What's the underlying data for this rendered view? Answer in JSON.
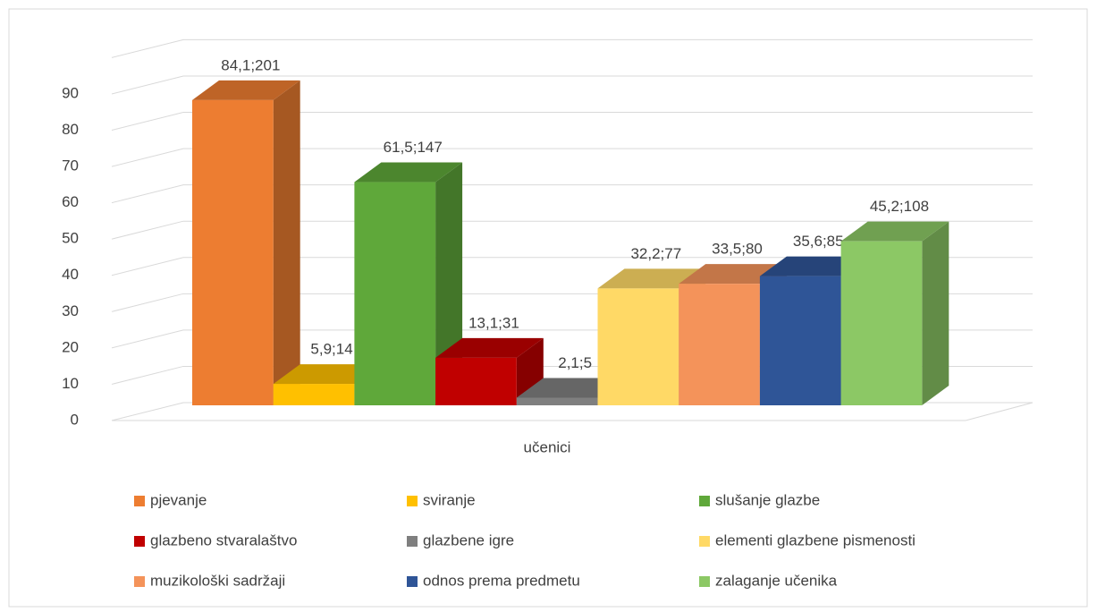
{
  "chart_data": {
    "type": "bar3d",
    "categories": [
      "učenici"
    ],
    "series": [
      {
        "name": "pjevanje",
        "color": "#ed7d31",
        "values": [
          84.1
        ],
        "value_labels": [
          "84,1;201"
        ]
      },
      {
        "name": "sviranje",
        "color": "#ffc000",
        "values": [
          5.9
        ],
        "value_labels": [
          "5,9;14"
        ]
      },
      {
        "name": "slušanje glazbe",
        "color": "#5fa83a",
        "values": [
          61.5
        ],
        "value_labels": [
          "61,5;147"
        ]
      },
      {
        "name": "glazbeno stvaralaštvo",
        "color": "#c00000",
        "values": [
          13.1
        ],
        "value_labels": [
          "13,1;31"
        ]
      },
      {
        "name": "glazbene igre",
        "color": "#7f7f7f",
        "values": [
          2.1
        ],
        "value_labels": [
          "2,1;5"
        ]
      },
      {
        "name": "elementi glazbene pismenosti",
        "color": "#ffd966",
        "values": [
          32.2
        ],
        "value_labels": [
          "32,2;77"
        ]
      },
      {
        "name": "muzikološki sadržaji",
        "color": "#f4935a",
        "values": [
          33.5
        ],
        "value_labels": [
          "33,5;80"
        ]
      },
      {
        "name": "odnos prema predmetu",
        "color": "#2f5597",
        "values": [
          35.6
        ],
        "value_labels": [
          "35,6;85"
        ]
      },
      {
        "name": "zalaganje učenika",
        "color": "#8cc865",
        "values": [
          45.2
        ],
        "value_labels": [
          "45,2;108"
        ]
      }
    ],
    "ylim": [
      0,
      100
    ],
    "yticks": [
      0,
      10,
      20,
      30,
      40,
      50,
      60,
      70,
      80,
      90
    ],
    "grid": true,
    "legend": "bottom"
  }
}
